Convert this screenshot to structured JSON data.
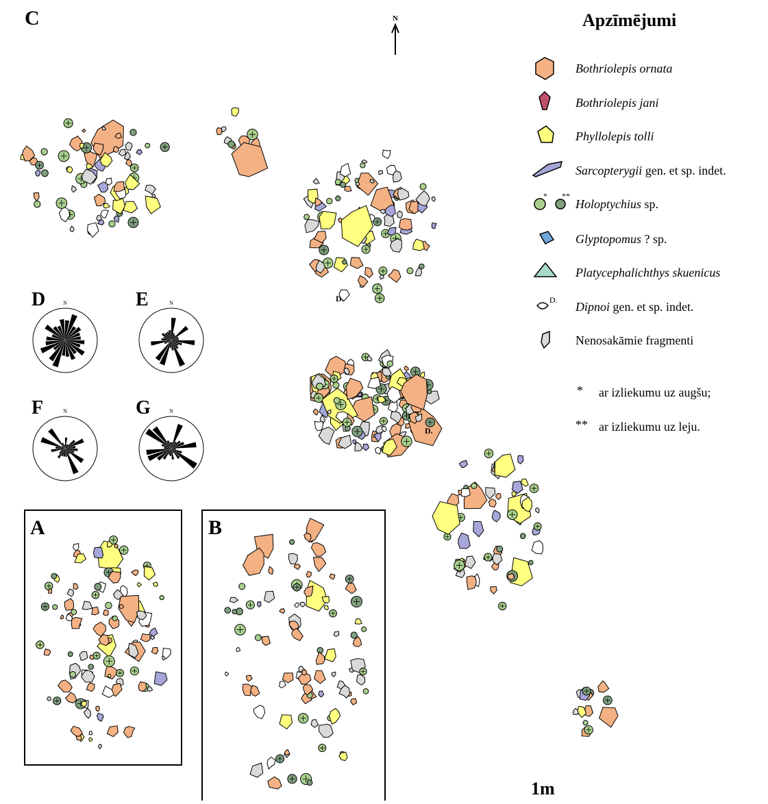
{
  "panels": {
    "a": "A",
    "b": "B",
    "c": "C"
  },
  "north": "N",
  "roses": [
    {
      "letter": "D",
      "north": "N"
    },
    {
      "letter": "E",
      "north": "N"
    },
    {
      "letter": "F",
      "north": "N"
    },
    {
      "letter": "G",
      "north": "N"
    }
  ],
  "dipnoi_marks": [
    "D.",
    "D."
  ],
  "legend": {
    "title": "Apzīmējumi",
    "items": [
      {
        "name": "Bothriolepis ornata"
      },
      {
        "name": "Bothriolepis jani"
      },
      {
        "name": "Phyllolepis tolli"
      },
      {
        "name": "Sarcopterygii",
        "suffix": "gen. et sp. indet."
      },
      {
        "name": "Holoptychius",
        "suffix": "sp.",
        "icon_marks": [
          "*",
          "**"
        ]
      },
      {
        "name": "Glyptopomus",
        "suffix": "? sp."
      },
      {
        "name": "Platycephalichthys skuenicus"
      },
      {
        "name": "Dipnoi",
        "suffix": "gen. et sp. indet.",
        "icon_mark": "D."
      },
      {
        "text": "Nenosakāmie fragmenti"
      }
    ],
    "notes": [
      {
        "mark": "*",
        "text": "ar izliekumu uz augšu;"
      },
      {
        "mark": "**",
        "text": "ar izliekumu uz leju."
      }
    ]
  },
  "scale": "1m"
}
